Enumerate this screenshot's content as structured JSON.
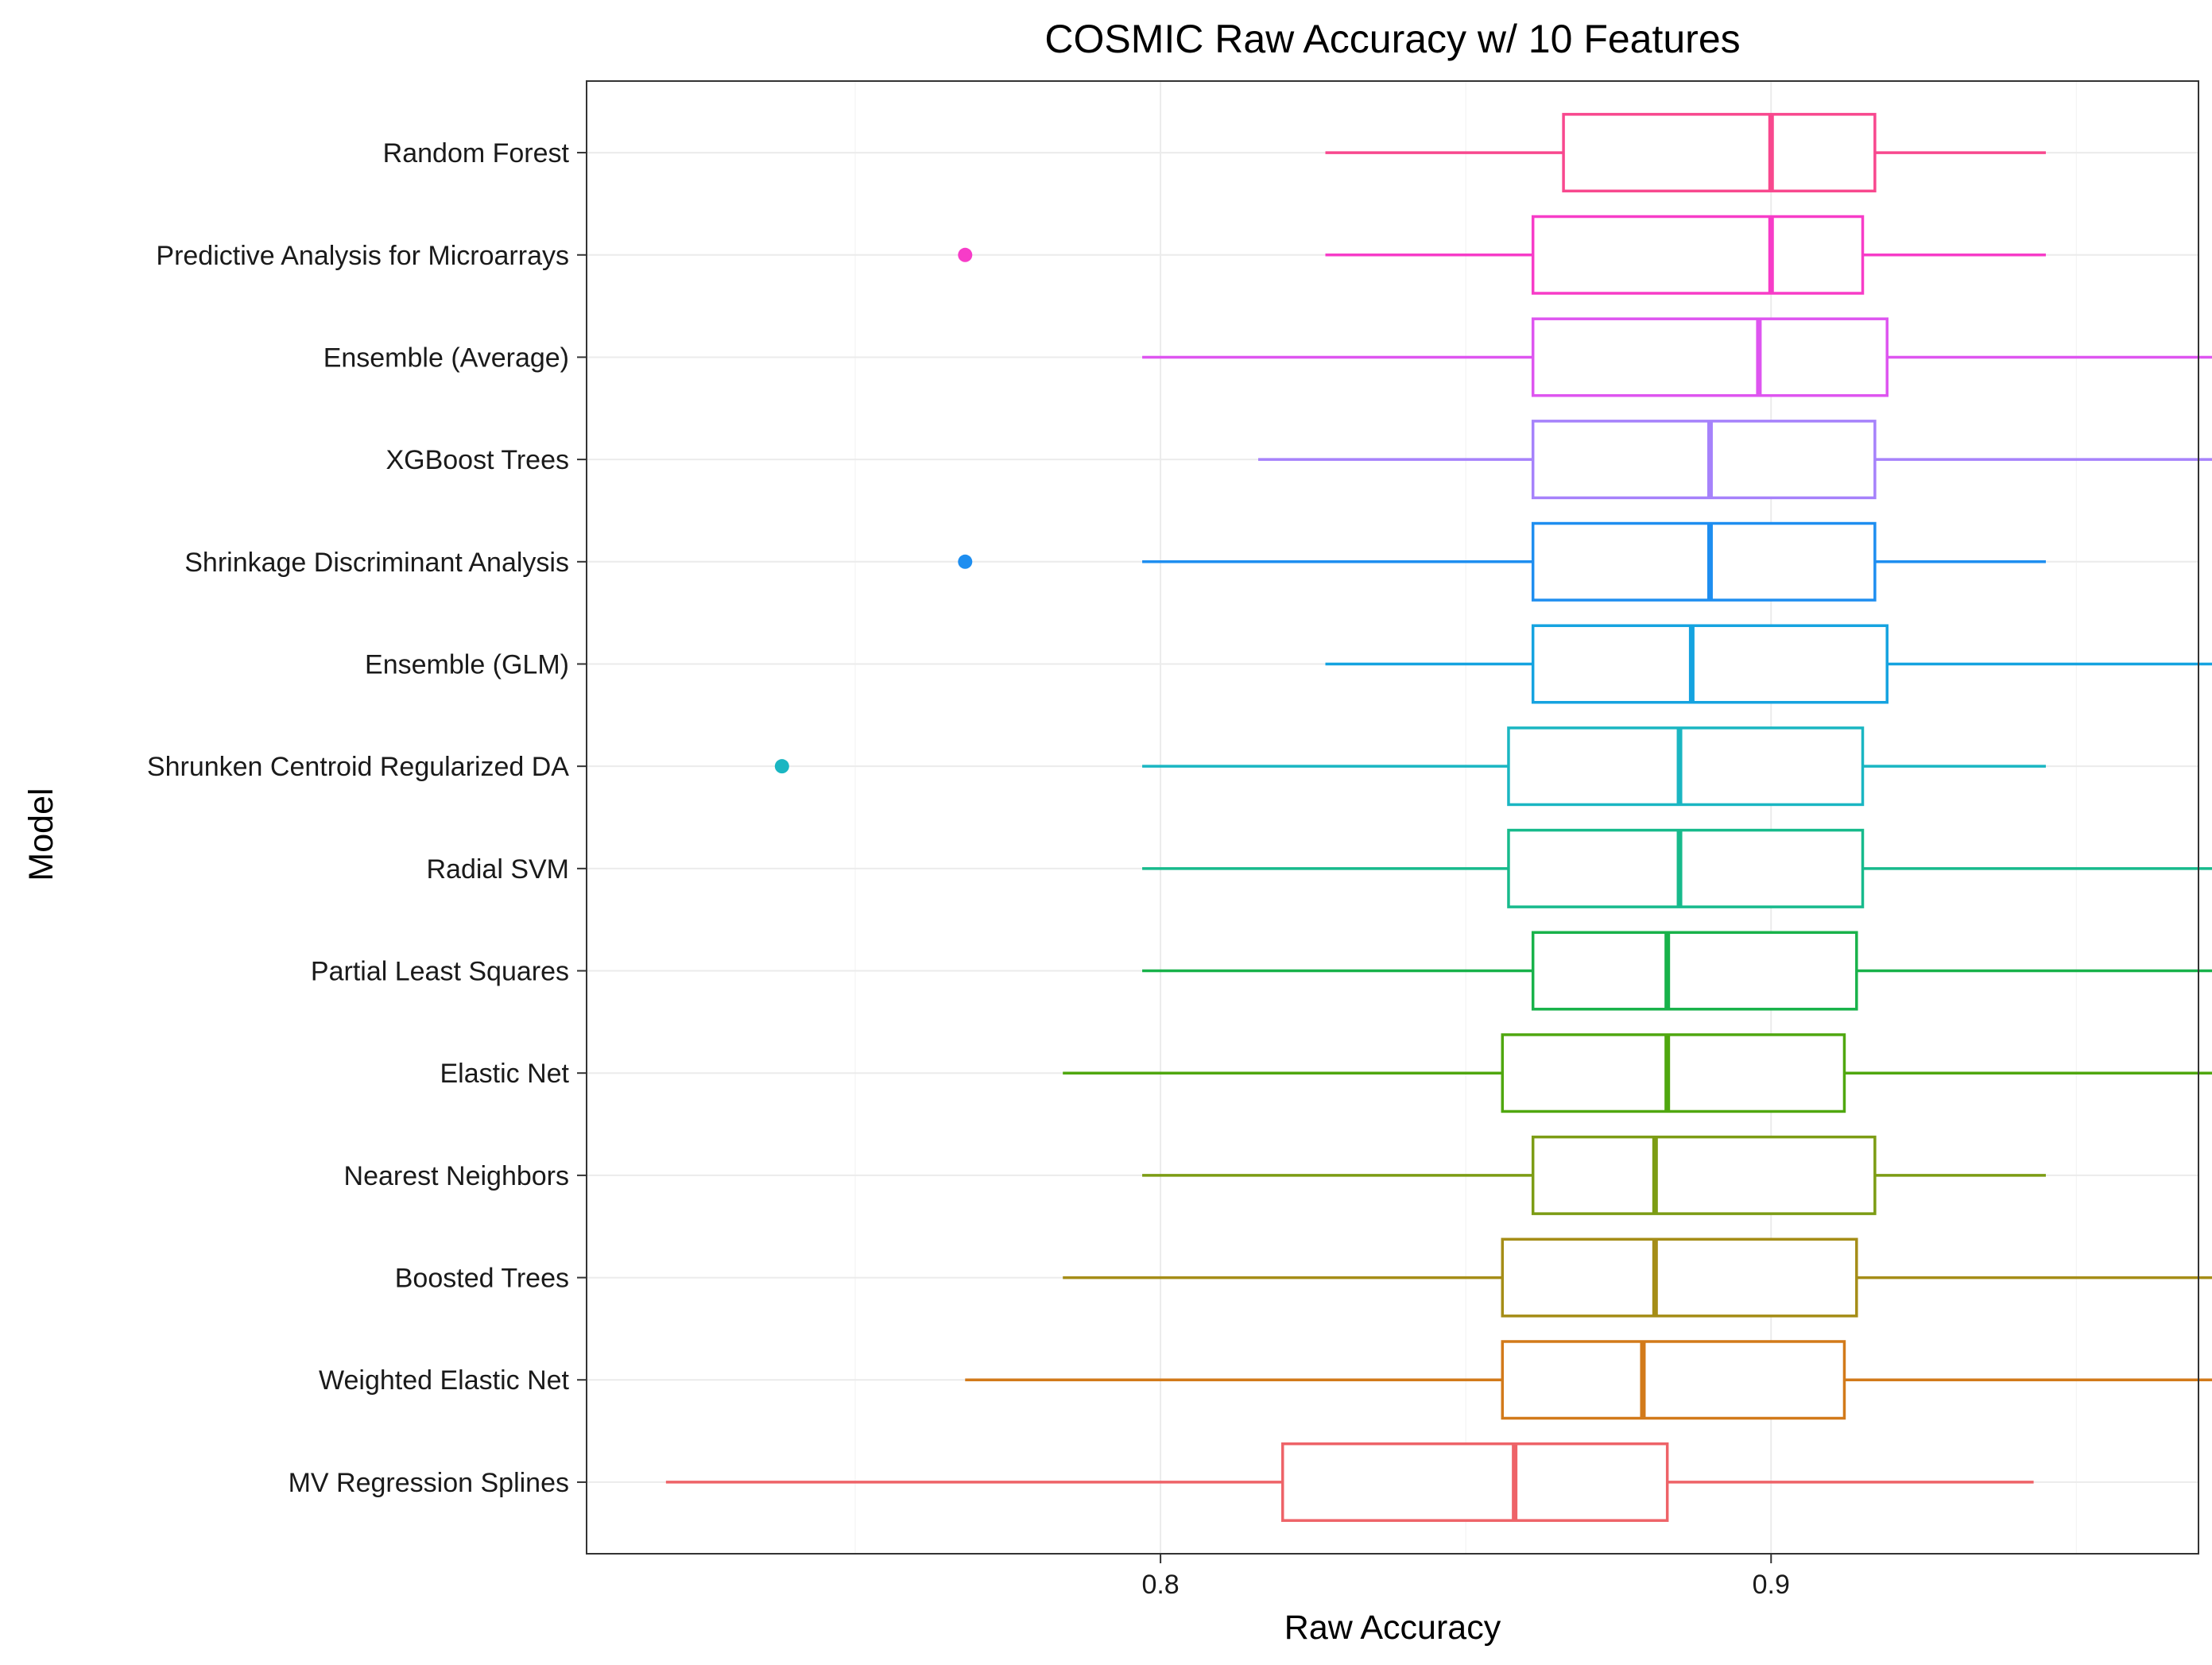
{
  "chart_data": {
    "type": "boxplot",
    "orientation": "horizontal",
    "title": "COSMIC Raw Accuracy w/ 10 Features",
    "xlabel": "Raw Accuracy",
    "ylabel": "Model",
    "xlim": [
      0.706,
      0.97
    ],
    "x_ticks": [
      0.8,
      0.9
    ],
    "x_tick_labels": [
      "0.8",
      "0.9"
    ],
    "grid": true,
    "legend": "none",
    "series": [
      {
        "name": "Random Forest",
        "color": "#F8488E",
        "whisker_low": 0.827,
        "q1": 0.866,
        "median": 0.9,
        "q3": 0.917,
        "whisker_high": 0.945,
        "outliers": []
      },
      {
        "name": "Predictive Analysis for Microarrays",
        "color": "#F73CC8",
        "whisker_low": 0.827,
        "q1": 0.861,
        "median": 0.9,
        "q3": 0.915,
        "whisker_high": 0.945,
        "outliers": [
          0.768
        ]
      },
      {
        "name": "Ensemble (Average)",
        "color": "#DE55F0",
        "whisker_low": 0.797,
        "q1": 0.861,
        "median": 0.898,
        "q3": 0.919,
        "whisker_high": 0.975,
        "outliers": []
      },
      {
        "name": "XGBoost Trees",
        "color": "#A682FB",
        "whisker_low": 0.816,
        "q1": 0.861,
        "median": 0.89,
        "q3": 0.917,
        "whisker_high": 0.975,
        "outliers": []
      },
      {
        "name": "Shrinkage Discriminant Analysis",
        "color": "#1E8EF0",
        "whisker_low": 0.797,
        "q1": 0.861,
        "median": 0.89,
        "q3": 0.917,
        "whisker_high": 0.945,
        "outliers": [
          0.768
        ]
      },
      {
        "name": "Ensemble (GLM)",
        "color": "#15A3E0",
        "whisker_low": 0.827,
        "q1": 0.861,
        "median": 0.887,
        "q3": 0.919,
        "whisker_high": 0.975,
        "outliers": []
      },
      {
        "name": "Shrunken Centroid Regularized DA",
        "color": "#1AB6C2",
        "whisker_low": 0.797,
        "q1": 0.857,
        "median": 0.885,
        "q3": 0.915,
        "whisker_high": 0.945,
        "outliers": [
          0.738
        ]
      },
      {
        "name": "Radial SVM",
        "color": "#17BA8C",
        "whisker_low": 0.797,
        "q1": 0.857,
        "median": 0.885,
        "q3": 0.915,
        "whisker_high": 0.975,
        "outliers": []
      },
      {
        "name": "Partial Least Squares",
        "color": "#18B24A",
        "whisker_low": 0.797,
        "q1": 0.861,
        "median": 0.883,
        "q3": 0.914,
        "whisker_high": 0.975,
        "outliers": []
      },
      {
        "name": "Elastic Net",
        "color": "#4FA70F",
        "whisker_low": 0.784,
        "q1": 0.856,
        "median": 0.883,
        "q3": 0.912,
        "whisker_high": 0.975,
        "outliers": []
      },
      {
        "name": "Nearest Neighbors",
        "color": "#7C9C14",
        "whisker_low": 0.797,
        "q1": 0.861,
        "median": 0.881,
        "q3": 0.917,
        "whisker_high": 0.945,
        "outliers": []
      },
      {
        "name": "Boosted Trees",
        "color": "#A58D17",
        "whisker_low": 0.784,
        "q1": 0.856,
        "median": 0.881,
        "q3": 0.914,
        "whisker_high": 0.975,
        "outliers": []
      },
      {
        "name": "Weighted Elastic Net",
        "color": "#D27A1A",
        "whisker_low": 0.768,
        "q1": 0.856,
        "median": 0.879,
        "q3": 0.912,
        "whisker_high": 0.975,
        "outliers": []
      },
      {
        "name": "MV Regression Splines",
        "color": "#EE6368",
        "whisker_low": 0.719,
        "q1": 0.82,
        "median": 0.858,
        "q3": 0.883,
        "whisker_high": 0.943,
        "outliers": []
      }
    ]
  }
}
